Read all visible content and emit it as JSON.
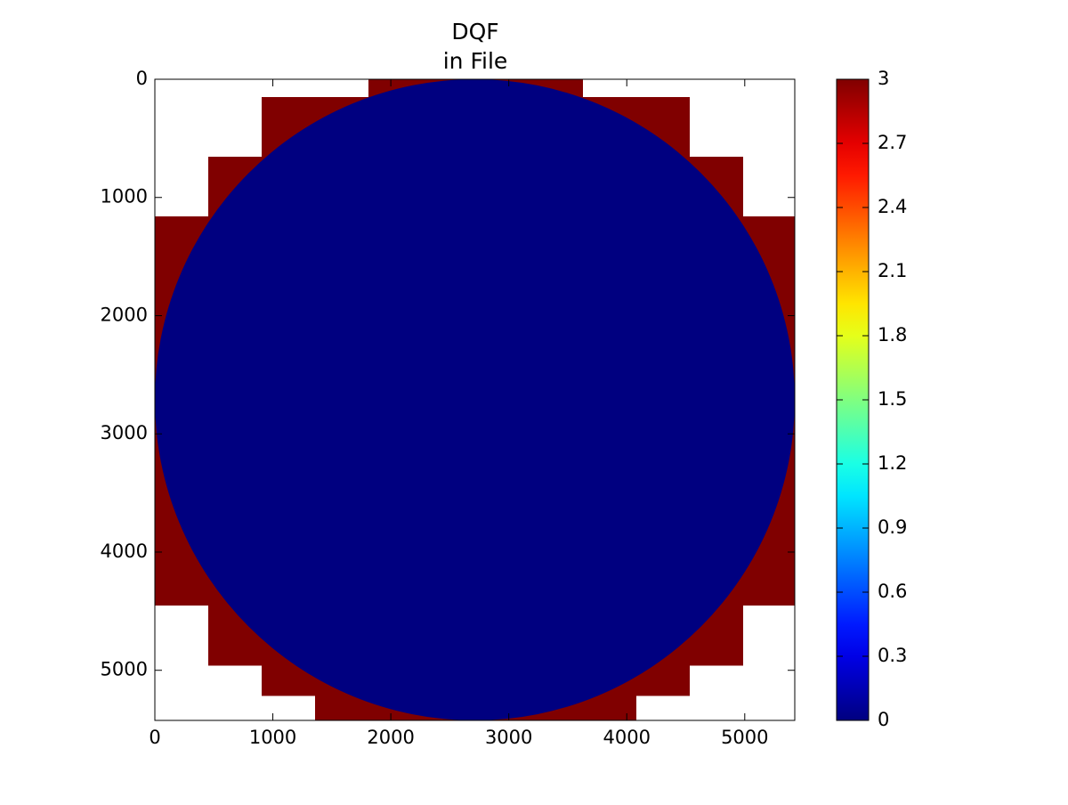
{
  "chart_data": {
    "type": "image",
    "title": [
      "DQF",
      "in File"
    ],
    "xlim": [
      0,
      5424
    ],
    "ylim": [
      5424,
      0
    ],
    "xticks": [
      0,
      1000,
      2000,
      3000,
      4000,
      5000
    ],
    "yticks": [
      0,
      1000,
      2000,
      3000,
      4000,
      5000
    ],
    "colormap": "jet",
    "clim": [
      0,
      3
    ],
    "cticks": [
      0,
      0.3,
      0.6,
      0.9,
      1.2,
      1.5,
      1.8,
      2.1,
      2.4,
      2.7,
      3
    ],
    "blocks": [
      {
        "x": [
          1810,
          3627
        ],
        "y": [
          0,
          151
        ],
        "value": 3
      },
      {
        "x": [
          905,
          4532
        ],
        "y": [
          151,
          656
        ],
        "value": 3
      },
      {
        "x": [
          452,
          4985
        ],
        "y": [
          656,
          1161
        ],
        "value": 3
      },
      {
        "x": [
          0,
          5424
        ],
        "y": [
          1161,
          4454
        ],
        "value": 3
      },
      {
        "x": [
          452,
          4985
        ],
        "y": [
          4454,
          4959
        ],
        "value": 3
      },
      {
        "x": [
          905,
          4532
        ],
        "y": [
          4959,
          5215
        ],
        "value": 3
      },
      {
        "x": [
          1357,
          4080
        ],
        "y": [
          5215,
          5424
        ],
        "value": 3
      }
    ],
    "disk": {
      "center": [
        2712,
        2712
      ],
      "radius": 2712,
      "value": 0
    }
  }
}
